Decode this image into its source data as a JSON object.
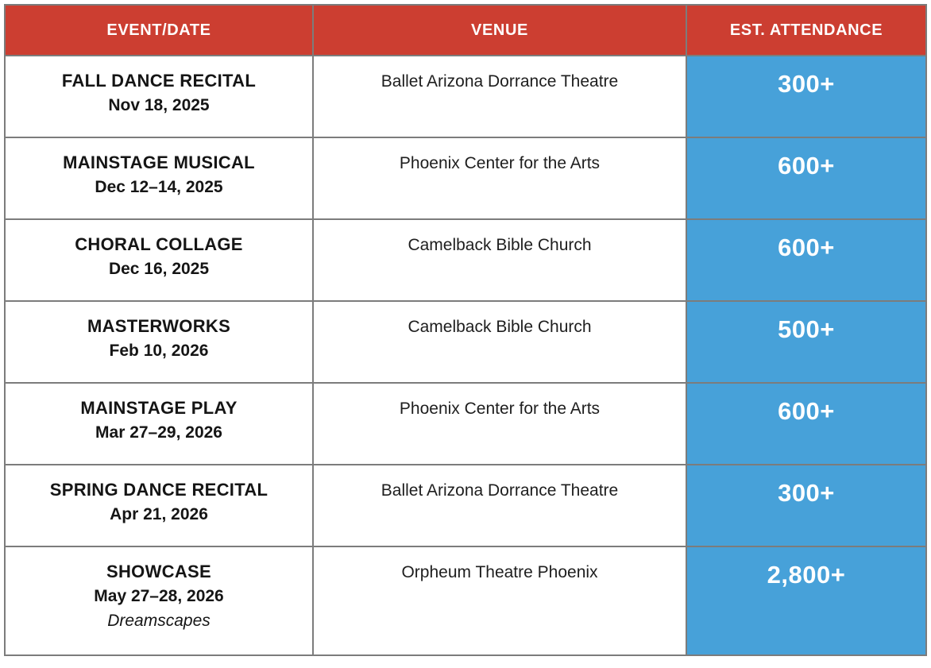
{
  "table": {
    "columns": [
      {
        "label": "EVENT/DATE"
      },
      {
        "label": "VENUE"
      },
      {
        "label": "EST. ATTENDANCE"
      }
    ],
    "rows": [
      {
        "event": "FALL DANCE RECITAL",
        "date": "Nov 18, 2025",
        "subtitle": "",
        "venue": "Ballet Arizona Dorrance Theatre",
        "attendance": "300+"
      },
      {
        "event": "MAINSTAGE MUSICAL",
        "date": "Dec 12–14, 2025",
        "subtitle": "",
        "venue": "Phoenix Center for the Arts",
        "attendance": "600+"
      },
      {
        "event": "CHORAL COLLAGE",
        "date": "Dec 16, 2025",
        "subtitle": "",
        "venue": "Camelback Bible Church",
        "attendance": "600+"
      },
      {
        "event": "MASTERWORKS",
        "date": "Feb 10, 2026",
        "subtitle": "",
        "venue": "Camelback Bible Church",
        "attendance": "500+"
      },
      {
        "event": "MAINSTAGE PLAY",
        "date": "Mar 27–29, 2026",
        "subtitle": "",
        "venue": "Phoenix Center for the Arts",
        "attendance": "600+"
      },
      {
        "event": "SPRING DANCE RECITAL",
        "date": "Apr 21, 2026",
        "subtitle": "",
        "venue": "Ballet Arizona Dorrance Theatre",
        "attendance": "300+"
      },
      {
        "event": "SHOWCASE",
        "date": "May 27–28, 2026",
        "subtitle": "Dreamscapes",
        "venue": "Orpheum Theatre Phoenix",
        "attendance": "2,800+"
      }
    ]
  },
  "colors": {
    "header_bg": "#CC3E31",
    "header_text": "#FFFFFF",
    "attendance_bg": "#47A1D9",
    "attendance_text": "#FFFFFF",
    "border": "#7C7C7C",
    "body_text": "#151515",
    "venue_text": "#1E1E1E"
  }
}
